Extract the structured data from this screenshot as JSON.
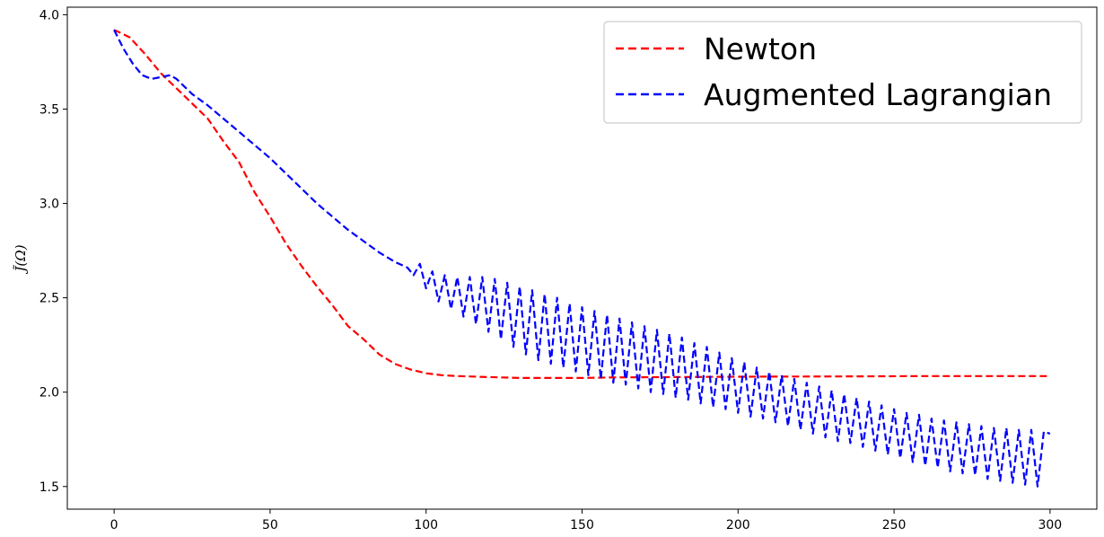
{
  "chart_data": {
    "type": "line",
    "title": "",
    "xlabel": "",
    "ylabel": "J̃(Ω)",
    "xlim": [
      -15,
      315
    ],
    "ylim": [
      1.38,
      4.04
    ],
    "xticks": [
      0,
      50,
      100,
      150,
      200,
      250,
      300
    ],
    "yticks": [
      1.5,
      2.0,
      2.5,
      3.0,
      3.5,
      4.0
    ],
    "xtick_labels": [
      "0",
      "50",
      "100",
      "150",
      "200",
      "250",
      "300"
    ],
    "ytick_labels": [
      "1.5",
      "2.0",
      "2.5",
      "3.0",
      "3.5",
      "4.0"
    ],
    "grid": false,
    "legend_position": "top-right",
    "series": [
      {
        "name": "Newton",
        "color": "#ff0000",
        "style": "dashed",
        "x": [
          0,
          5,
          10,
          15,
          20,
          25,
          30,
          35,
          40,
          45,
          50,
          55,
          60,
          65,
          70,
          75,
          80,
          85,
          90,
          95,
          100,
          105,
          110,
          120,
          130,
          140,
          150,
          160,
          180,
          200,
          220,
          240,
          260,
          280,
          300
        ],
        "y": [
          3.92,
          3.88,
          3.79,
          3.69,
          3.61,
          3.53,
          3.45,
          3.33,
          3.22,
          3.06,
          2.93,
          2.79,
          2.67,
          2.56,
          2.46,
          2.35,
          2.28,
          2.2,
          2.15,
          2.12,
          2.1,
          2.09,
          2.085,
          2.08,
          2.075,
          2.075,
          2.075,
          2.078,
          2.08,
          2.082,
          2.083,
          2.084,
          2.085,
          2.085,
          2.085
        ]
      },
      {
        "name": "Augmented Lagrangian",
        "color": "#0000ff",
        "style": "dashed",
        "x": [
          0,
          3,
          6,
          9,
          12,
          15,
          18,
          20,
          25,
          30,
          35,
          40,
          45,
          50,
          55,
          60,
          65,
          70,
          75,
          80,
          85,
          90,
          94,
          96,
          98,
          100,
          102,
          104,
          106,
          108,
          110,
          112,
          114,
          116,
          118,
          120,
          122,
          124,
          126,
          128,
          130,
          132,
          134,
          136,
          138,
          140,
          142,
          144,
          146,
          148,
          150,
          152,
          154,
          156,
          158,
          160,
          162,
          164,
          166,
          168,
          170,
          172,
          174,
          176,
          178,
          180,
          182,
          184,
          186,
          188,
          190,
          192,
          194,
          196,
          198,
          200,
          202,
          204,
          206,
          208,
          210,
          212,
          214,
          216,
          218,
          220,
          222,
          224,
          226,
          228,
          230,
          232,
          234,
          236,
          238,
          240,
          242,
          244,
          246,
          248,
          250,
          252,
          254,
          256,
          258,
          260,
          262,
          264,
          266,
          268,
          270,
          272,
          274,
          276,
          278,
          280,
          282,
          284,
          286,
          288,
          290,
          292,
          294,
          296,
          298,
          300
        ],
        "y": [
          3.92,
          3.82,
          3.74,
          3.68,
          3.66,
          3.67,
          3.68,
          3.66,
          3.58,
          3.52,
          3.45,
          3.38,
          3.31,
          3.24,
          3.16,
          3.08,
          3.0,
          2.93,
          2.86,
          2.8,
          2.74,
          2.69,
          2.66,
          2.62,
          2.68,
          2.55,
          2.64,
          2.48,
          2.62,
          2.44,
          2.61,
          2.4,
          2.61,
          2.36,
          2.61,
          2.32,
          2.6,
          2.28,
          2.58,
          2.24,
          2.56,
          2.2,
          2.54,
          2.17,
          2.52,
          2.15,
          2.5,
          2.13,
          2.47,
          2.11,
          2.45,
          2.09,
          2.43,
          2.07,
          2.41,
          2.05,
          2.39,
          2.04,
          2.37,
          2.02,
          2.35,
          2.0,
          2.33,
          1.99,
          2.31,
          1.97,
          2.29,
          1.96,
          2.26,
          1.94,
          2.24,
          1.92,
          2.21,
          1.91,
          2.18,
          1.89,
          2.16,
          1.87,
          2.13,
          1.86,
          2.11,
          1.84,
          2.09,
          1.82,
          2.07,
          1.8,
          2.05,
          1.78,
          2.03,
          1.76,
          2.01,
          1.74,
          1.99,
          1.73,
          1.97,
          1.71,
          1.95,
          1.69,
          1.93,
          1.67,
          1.91,
          1.65,
          1.89,
          1.63,
          1.88,
          1.61,
          1.86,
          1.6,
          1.85,
          1.58,
          1.84,
          1.57,
          1.83,
          1.56,
          1.82,
          1.54,
          1.81,
          1.53,
          1.81,
          1.52,
          1.8,
          1.51,
          1.8,
          1.5,
          1.79,
          1.78
        ]
      }
    ]
  }
}
